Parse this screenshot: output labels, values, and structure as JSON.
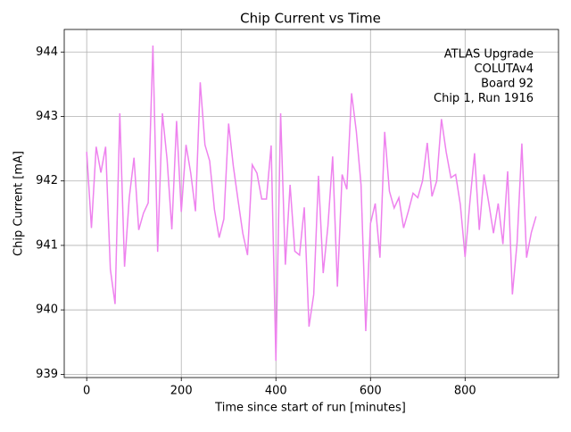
{
  "chart_data": {
    "type": "line",
    "title": "Chip Current vs Time",
    "xlabel": "Time since start of run [minutes]",
    "ylabel": "Chip Current [mA]",
    "annotation": [
      "ATLAS Upgrade",
      "COLUTAv4",
      "Board 92",
      "Chip 1, Run 1916"
    ],
    "x": [
      0,
      10,
      20,
      30,
      40,
      50,
      60,
      70,
      80,
      90,
      100,
      110,
      120,
      130,
      140,
      150,
      160,
      170,
      180,
      190,
      200,
      210,
      220,
      230,
      240,
      250,
      260,
      270,
      280,
      290,
      300,
      310,
      320,
      330,
      340,
      350,
      360,
      370,
      380,
      390,
      400,
      410,
      420,
      430,
      440,
      450,
      460,
      470,
      480,
      490,
      500,
      510,
      520,
      530,
      540,
      550,
      560,
      570,
      580,
      590,
      600,
      610,
      620,
      630,
      640,
      650,
      660,
      670,
      680,
      690,
      700,
      710,
      720,
      730,
      740,
      750,
      760,
      770,
      780,
      790,
      800,
      810,
      820,
      830,
      840,
      850,
      860,
      870,
      880,
      890,
      900,
      910,
      920,
      930,
      940,
      950
    ],
    "series": [
      {
        "name": "Chip Current",
        "color": "#ee82ee",
        "values": [
          942.45,
          941.27,
          942.53,
          942.13,
          942.53,
          940.63,
          940.09,
          943.05,
          940.67,
          941.74,
          942.36,
          941.24,
          941.5,
          941.66,
          944.1,
          940.9,
          943.05,
          942.33,
          941.25,
          942.93,
          941.52,
          942.56,
          942.12,
          941.53,
          943.53,
          942.56,
          942.31,
          941.56,
          941.12,
          941.41,
          942.89,
          942.23,
          941.7,
          941.19,
          940.85,
          942.25,
          942.12,
          941.72,
          941.72,
          942.55,
          939.21,
          943.05,
          940.7,
          941.94,
          940.91,
          940.85,
          941.59,
          939.74,
          940.24,
          942.08,
          940.57,
          941.3,
          942.38,
          940.36,
          942.1,
          941.87,
          943.36,
          942.77,
          941.94,
          939.67,
          941.34,
          941.65,
          940.81,
          942.76,
          941.84,
          941.58,
          941.74,
          941.27,
          941.53,
          941.81,
          941.74,
          942.0,
          942.59,
          941.76,
          942.0,
          942.96,
          942.45,
          942.05,
          942.1,
          941.63,
          940.82,
          941.66,
          942.43,
          941.24,
          942.1,
          941.66,
          941.19,
          941.65,
          941.02,
          942.15,
          940.24,
          941.05,
          942.58,
          940.81,
          941.2,
          941.45
        ]
      }
    ],
    "xlim": [
      -47.5,
      997.5
    ],
    "ylim": [
      938.95,
      944.35
    ],
    "xticks": [
      0,
      200,
      400,
      600,
      800
    ],
    "yticks": [
      939,
      940,
      941,
      942,
      943,
      944
    ],
    "grid": true
  }
}
